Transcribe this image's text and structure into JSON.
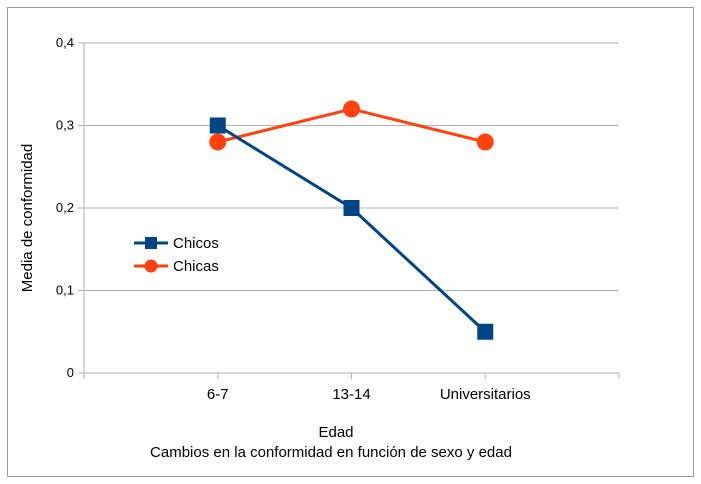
{
  "chart_data": {
    "type": "line",
    "categories": [
      "6-7",
      "13-14",
      "Universitarios"
    ],
    "series": [
      {
        "name": "Chicos",
        "values": [
          0.3,
          0.2,
          0.05
        ],
        "color": "#004586",
        "marker": "square"
      },
      {
        "name": "Chicas",
        "values": [
          0.28,
          0.32,
          0.28
        ],
        "color": "#ff420e",
        "marker": "circle"
      }
    ],
    "xlabel": "Edad",
    "ylabel": "Media de conformidad",
    "ylim": [
      0,
      0.4
    ],
    "yticks": [
      "0",
      "0,1",
      "0,2",
      "0,3",
      "0,4"
    ],
    "caption": "Cambios en la conformidad en función de sexo y edad",
    "grid": "horizontal",
    "legend_position": "left-middle"
  }
}
